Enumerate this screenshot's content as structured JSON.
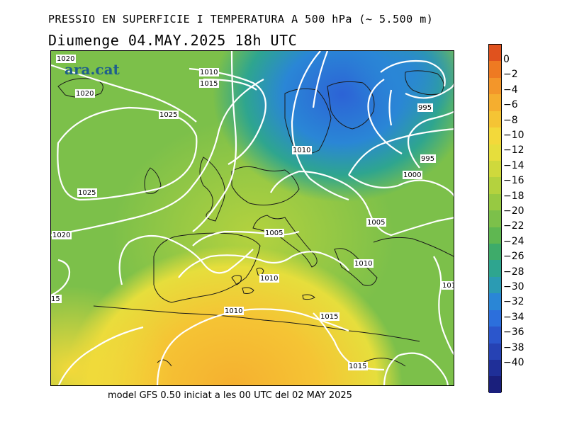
{
  "header": {
    "title": "PRESSIO EN SUPERFICIE I TEMPERATURA A 500 hPa (~ 5.500 m)",
    "subtitle": "Diumenge  04.MAY.2025  18h  UTC"
  },
  "map": {
    "logo": "ara.cat",
    "isobar_labels": [
      "1020",
      "1010",
      "1015",
      "1020",
      "1025",
      "1025",
      "1020",
      "995",
      "995",
      "1000",
      "1010",
      "1005",
      "1005",
      "1010",
      "1010",
      "1010",
      "1015",
      "15",
      "101",
      "1015"
    ]
  },
  "colorbar": {
    "labels": [
      "0",
      "−2",
      "−4",
      "−6",
      "−8",
      "−10",
      "−12",
      "−14",
      "−16",
      "−18",
      "−20",
      "−22",
      "−24",
      "−26",
      "−28",
      "−30",
      "−32",
      "−34",
      "−36",
      "−38",
      "−40"
    ],
    "colors": [
      "#e0521e",
      "#ee7a22",
      "#f3962a",
      "#f5ae2f",
      "#f5c434",
      "#f3d93a",
      "#e6de3c",
      "#cfd93c",
      "#b4d23e",
      "#97c942",
      "#7cc04a",
      "#5fb751",
      "#3eab6a",
      "#2ea58f",
      "#2b9bb3",
      "#2a86d6",
      "#2c6fdc",
      "#2b56cc",
      "#2642b4",
      "#1f2f98",
      "#1a1f7c"
    ]
  },
  "footer": {
    "text": "model GFS 0.50 iniciat a les 00 UTC del 02 MAY 2025"
  }
}
